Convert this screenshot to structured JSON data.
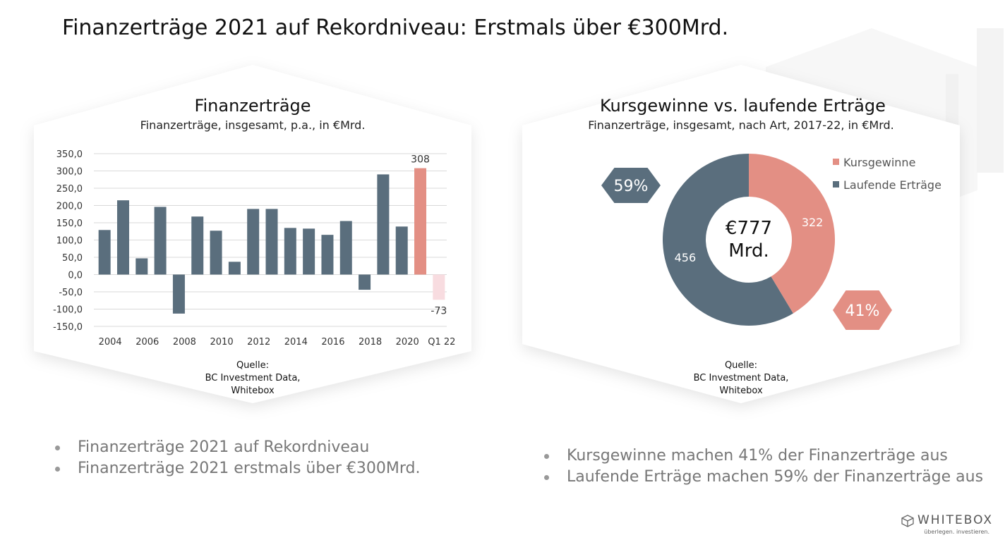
{
  "page": {
    "title": "Finanzerträge 2021 auf Rekordniveau: Erstmals über €300Mrd."
  },
  "colors": {
    "slate": "#5a6e7d",
    "salmon": "#e38f84",
    "pink_light": "#f8dce0",
    "grid": "#d9d9d9",
    "bullet_text": "#777777"
  },
  "left_panel": {
    "title": "Finanzerträge",
    "subtitle": "Finanzerträge, insgesamt, p.a., in €Mrd.",
    "source_lines": [
      "Quelle:",
      "BC Investment Data,",
      "Whitebox"
    ]
  },
  "right_panel": {
    "title": "Kursgewinne vs. laufende Erträge",
    "subtitle": "Finanzerträge, insgesamt, nach Art, 2017-22, in €Mrd.",
    "source_lines": [
      "Quelle:",
      "BC Investment Data,",
      "Whitebox"
    ],
    "callout_left": "59%",
    "callout_right": "41%",
    "center_line1": "€777",
    "center_line2": "Mrd."
  },
  "chart_data": [
    {
      "type": "bar",
      "categories": [
        "2004",
        "2005",
        "2006",
        "2007",
        "2008",
        "2009",
        "2010",
        "2011",
        "2012",
        "2013",
        "2014",
        "2015",
        "2016",
        "2017",
        "2018",
        "2019",
        "2020",
        "2021",
        "Q1 22"
      ],
      "x_tick_labels": [
        "2004",
        "2006",
        "2008",
        "2010",
        "2012",
        "2014",
        "2016",
        "2018",
        "2020",
        "Q1 22"
      ],
      "values": [
        129,
        215,
        47,
        196,
        -113,
        168,
        127,
        37,
        190,
        190,
        135,
        133,
        115,
        155,
        -44,
        290,
        139,
        308,
        -73
      ],
      "data_labels": {
        "2021": "308",
        "Q1 22": "-73"
      },
      "highlight": {
        "2021": "#e38f84",
        "Q1 22": "#f8dce0"
      },
      "base_color": "#5a6e7d",
      "ylim": [
        -150,
        350
      ],
      "yticks": [
        "350,0",
        "300,0",
        "250,0",
        "200,0",
        "150,0",
        "100,0",
        "50,0",
        "0,0",
        "-50,0",
        "-100,0",
        "-150,0"
      ],
      "ytick_values": [
        350,
        300,
        250,
        200,
        150,
        100,
        50,
        0,
        -50,
        -100,
        -150
      ],
      "grid": true
    },
    {
      "type": "pie",
      "donut": true,
      "slices": [
        {
          "name": "Kursgewinne",
          "value": 322,
          "label": "322",
          "color": "#e38f84"
        },
        {
          "name": "Laufende Erträge",
          "value": 456,
          "label": "456",
          "color": "#5a6e7d"
        }
      ],
      "total": 777,
      "legend": "top-right"
    }
  ],
  "bullets_left": [
    "Finanzerträge 2021 auf Rekordniveau",
    "Finanzerträge 2021 erstmals über €300Mrd."
  ],
  "bullets_right": [
    "Kursgewinne machen 41% der Finanzerträge aus",
    "Laufende Erträge machen 59% der Finanzerträge aus"
  ],
  "logo": {
    "name": "WHITEBOX",
    "tagline": "überlegen. investieren."
  }
}
